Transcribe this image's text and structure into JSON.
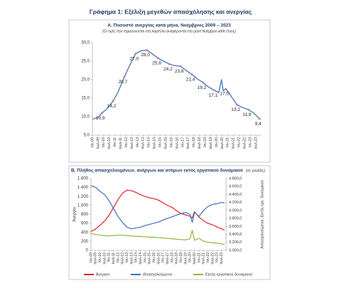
{
  "title": "Γράφημα 1: Εξέλιξη μεγεθών απασχόλησης και ανεργίας",
  "chart_data": [
    {
      "type": "line",
      "title": "Α. Ποσοστό ανεργίας κατά μήνα, Νοέμβριος 2009 – 2023",
      "subtitle": "(Οι τιμές που σημειώνονται στη καμπύλη αναφέρονται στο μήνα Νοέμβριο κάθε έτους)",
      "x": [
        2009.0,
        2009.5,
        2009.83,
        2010.25,
        2010.83,
        2011.25,
        2011.83,
        2012.25,
        2012.5,
        2012.83,
        2013.3,
        2013.83,
        2014.3,
        2014.83,
        2015.3,
        2015.83,
        2016.3,
        2016.83,
        2017.3,
        2017.83,
        2018.3,
        2018.83,
        2019.3,
        2019.83,
        2020.2,
        2020.45,
        2020.6,
        2020.83,
        2021.1,
        2021.3,
        2021.83,
        2022.3,
        2022.83,
        2023.3,
        2023.83
      ],
      "series": [
        {
          "name": "Ποσοστό ανεργίας",
          "color": "#4a7ebb",
          "marker_color": "#e0608a",
          "values": [
            9.3,
            9.8,
            10.9,
            12.0,
            14.2,
            16.5,
            20.7,
            23.5,
            25.0,
            27.0,
            27.8,
            28.0,
            27.0,
            25.8,
            25.0,
            24.2,
            23.8,
            23.6,
            22.5,
            21.4,
            20.2,
            19.2,
            18.0,
            17.1,
            16.5,
            20.0,
            17.0,
            17.5,
            16.5,
            15.5,
            13.2,
            12.5,
            11.9,
            11.0,
            9.4
          ],
          "value_labels": [
            null,
            null,
            "10,9",
            null,
            "14,2",
            null,
            "20,7",
            null,
            null,
            "27,0",
            null,
            "28,0",
            null,
            "25,8",
            null,
            "24,2",
            null,
            "23,6",
            null,
            "21,4",
            null,
            "19,2",
            null,
            "17,1",
            null,
            null,
            null,
            "17,5",
            null,
            null,
            "13,2",
            null,
            "11,9",
            null,
            "9,4"
          ]
        }
      ],
      "xlim": [
        2009,
        2024
      ],
      "xticks": [
        {
          "value": 2009,
          "label": "Ιαν-09"
        },
        {
          "value": 2009.5,
          "label": "Ιουλ-09"
        },
        {
          "value": 2010,
          "label": "Ιαν-10"
        },
        {
          "value": 2010.5,
          "label": "Ιουλ-10"
        },
        {
          "value": 2011,
          "label": "Ιαν-11"
        },
        {
          "value": 2011.5,
          "label": "Ιουλ-11"
        },
        {
          "value": 2012,
          "label": "Ιαν-12"
        },
        {
          "value": 2012.5,
          "label": "Ιουλ-12"
        },
        {
          "value": 2013,
          "label": "Ιαν-13"
        },
        {
          "value": 2013.5,
          "label": "Ιουλ-13"
        },
        {
          "value": 2014,
          "label": "Ιαν-14"
        },
        {
          "value": 2014.5,
          "label": "Ιουλ-14"
        },
        {
          "value": 2015,
          "label": "Ιαν-15"
        },
        {
          "value": 2015.5,
          "label": "Ιουλ-15"
        },
        {
          "value": 2016,
          "label": "Ιαν-16"
        },
        {
          "value": 2016.5,
          "label": "Ιουλ-16"
        },
        {
          "value": 2017,
          "label": "Ιαν-17"
        },
        {
          "value": 2017.5,
          "label": "Ιουλ-17"
        },
        {
          "value": 2018,
          "label": "Ιαν-18"
        },
        {
          "value": 2018.5,
          "label": "Ιουλ-18"
        },
        {
          "value": 2019,
          "label": "Ιαν-19"
        },
        {
          "value": 2019.5,
          "label": "Ιουλ-19"
        },
        {
          "value": 2020,
          "label": "Ιαν-20"
        },
        {
          "value": 2020.5,
          "label": "Ιουλ-20"
        },
        {
          "value": 2021,
          "label": "Ιαν-21"
        },
        {
          "value": 2021.5,
          "label": "Ιουλ-21"
        },
        {
          "value": 2022,
          "label": "Ιαν-22"
        },
        {
          "value": 2022.5,
          "label": "Ιουλ-22"
        },
        {
          "value": 2023,
          "label": "Ιαν-23"
        },
        {
          "value": 2023.5,
          "label": "Ιουλ-23"
        }
      ],
      "ylim": [
        5,
        30
      ],
      "yticks": [
        {
          "value": 5,
          "label": "5,0"
        },
        {
          "value": 10,
          "label": "10,0"
        },
        {
          "value": 15,
          "label": "15,0"
        },
        {
          "value": 20,
          "label": "20,0"
        },
        {
          "value": 25,
          "label": "25,0"
        },
        {
          "value": 30,
          "label": "30,0"
        }
      ],
      "grid": false
    },
    {
      "type": "line",
      "title": "Β. Πλήθος απασχολουμένων, ανέργων και ατόμων εκτός εργατικού δυναμικού",
      "subtitle": "(σε χιλιάδες)",
      "ylabel": "Άνεργοι",
      "y2label": "Απασχολούμενοι, Εκτός εργ. δυναμικού",
      "x": [
        2009,
        2009.5,
        2010,
        2010.5,
        2011,
        2011.5,
        2012,
        2012.5,
        2013,
        2013.5,
        2014,
        2014.5,
        2015,
        2015.5,
        2016,
        2016.5,
        2017,
        2017.5,
        2018,
        2018.5,
        2019,
        2019.5,
        2020,
        2020.25,
        2020.5,
        2021,
        2021.5,
        2022,
        2022.5,
        2023,
        2023.5,
        2023.83
      ],
      "series": [
        {
          "name": "Άνεργοι",
          "color": "#e8202a",
          "values": [
            420,
            470,
            560,
            650,
            780,
            950,
            1130,
            1270,
            1340,
            1330,
            1290,
            1240,
            1200,
            1170,
            1150,
            1120,
            1060,
            1000,
            960,
            880,
            820,
            790,
            760,
            720,
            860,
            740,
            660,
            600,
            570,
            520,
            480,
            450
          ]
        },
        {
          "name": "Απασχολούμενοι",
          "color": "#3a6fbf",
          "axis": "y2",
          "values": [
            4620,
            4580,
            4480,
            4400,
            4250,
            4050,
            3850,
            3700,
            3580,
            3540,
            3560,
            3580,
            3620,
            3650,
            3680,
            3710,
            3760,
            3800,
            3840,
            3880,
            3920,
            3950,
            3900,
            3700,
            3950,
            3850,
            4000,
            4100,
            4150,
            4170,
            4200,
            4190
          ]
        },
        {
          "name": "Εκτός εργατικού δυναμικού",
          "color": "#8fb83a",
          "axis": "y2",
          "values": [
            3420,
            3400,
            3380,
            3370,
            3360,
            3370,
            3380,
            3380,
            3370,
            3360,
            3350,
            3350,
            3340,
            3330,
            3330,
            3320,
            3310,
            3300,
            3290,
            3280,
            3270,
            3260,
            3290,
            3500,
            3250,
            3300,
            3230,
            3200,
            3190,
            3180,
            3160,
            3150
          ]
        }
      ],
      "xlim": [
        2009,
        2024
      ],
      "xticks": [
        {
          "value": 2009,
          "label": "Ιαν-09"
        },
        {
          "value": 2009.5,
          "label": "Ιουλ-09"
        },
        {
          "value": 2010,
          "label": "Ιαν-10"
        },
        {
          "value": 2010.5,
          "label": "Ιουλ-10"
        },
        {
          "value": 2011,
          "label": "Ιαν-11"
        },
        {
          "value": 2011.5,
          "label": "Ιουλ-11"
        },
        {
          "value": 2012,
          "label": "Ιαν-12"
        },
        {
          "value": 2012.5,
          "label": "Ιουλ-12"
        },
        {
          "value": 2013,
          "label": "Ιαν-13"
        },
        {
          "value": 2013.5,
          "label": "Ιουλ-13"
        },
        {
          "value": 2014,
          "label": "Ιαν-14"
        },
        {
          "value": 2014.5,
          "label": "Ιουλ-14"
        },
        {
          "value": 2015,
          "label": "Ιαν-15"
        },
        {
          "value": 2015.5,
          "label": "Ιουλ-15"
        },
        {
          "value": 2016,
          "label": "Ιαν-16"
        },
        {
          "value": 2016.5,
          "label": "Ιουλ-16"
        },
        {
          "value": 2017,
          "label": "Ιαν-17"
        },
        {
          "value": 2017.5,
          "label": "Ιουλ-17"
        },
        {
          "value": 2018,
          "label": "Ιαν-18"
        },
        {
          "value": 2018.5,
          "label": "Ιουλ-18"
        },
        {
          "value": 2019,
          "label": "Ιαν-19"
        },
        {
          "value": 2019.5,
          "label": "Ιουλ-19"
        },
        {
          "value": 2020,
          "label": "Ιαν-20"
        },
        {
          "value": 2020.5,
          "label": "Ιουλ-20"
        },
        {
          "value": 2021,
          "label": "Ιαν-21"
        },
        {
          "value": 2021.5,
          "label": "Ιουλ-21"
        },
        {
          "value": 2022,
          "label": "Ιαν-22"
        },
        {
          "value": 2022.5,
          "label": "Ιουλ-22"
        },
        {
          "value": 2023,
          "label": "Ιαν-23"
        },
        {
          "value": 2023.5,
          "label": "Ιουλ-23"
        }
      ],
      "ylim": [
        0,
        1600
      ],
      "yticks": [
        0,
        200,
        400,
        600,
        800,
        {
          "value": 1000,
          "label": "1.000"
        },
        {
          "value": 1200,
          "label": "1.200"
        },
        {
          "value": 1400,
          "label": "1.400"
        },
        {
          "value": 1600,
          "label": "1.600"
        }
      ],
      "y2lim": [
        3000,
        4800
      ],
      "y2ticks": [
        {
          "value": 3000,
          "label": "3.000,0"
        },
        {
          "value": 3200,
          "label": "3.200,0"
        },
        {
          "value": 3400,
          "label": "3.400,0"
        },
        {
          "value": 3600,
          "label": "3.600,0"
        },
        {
          "value": 3800,
          "label": "3.800,0"
        },
        {
          "value": 4000,
          "label": "4.000,0"
        },
        {
          "value": 4200,
          "label": "4.200,0"
        },
        {
          "value": 4400,
          "label": "4.400,0"
        },
        {
          "value": 4600,
          "label": "4.600,0"
        },
        {
          "value": 4800,
          "label": "4.800,0"
        }
      ],
      "legend": "bottom",
      "grid": false
    }
  ]
}
